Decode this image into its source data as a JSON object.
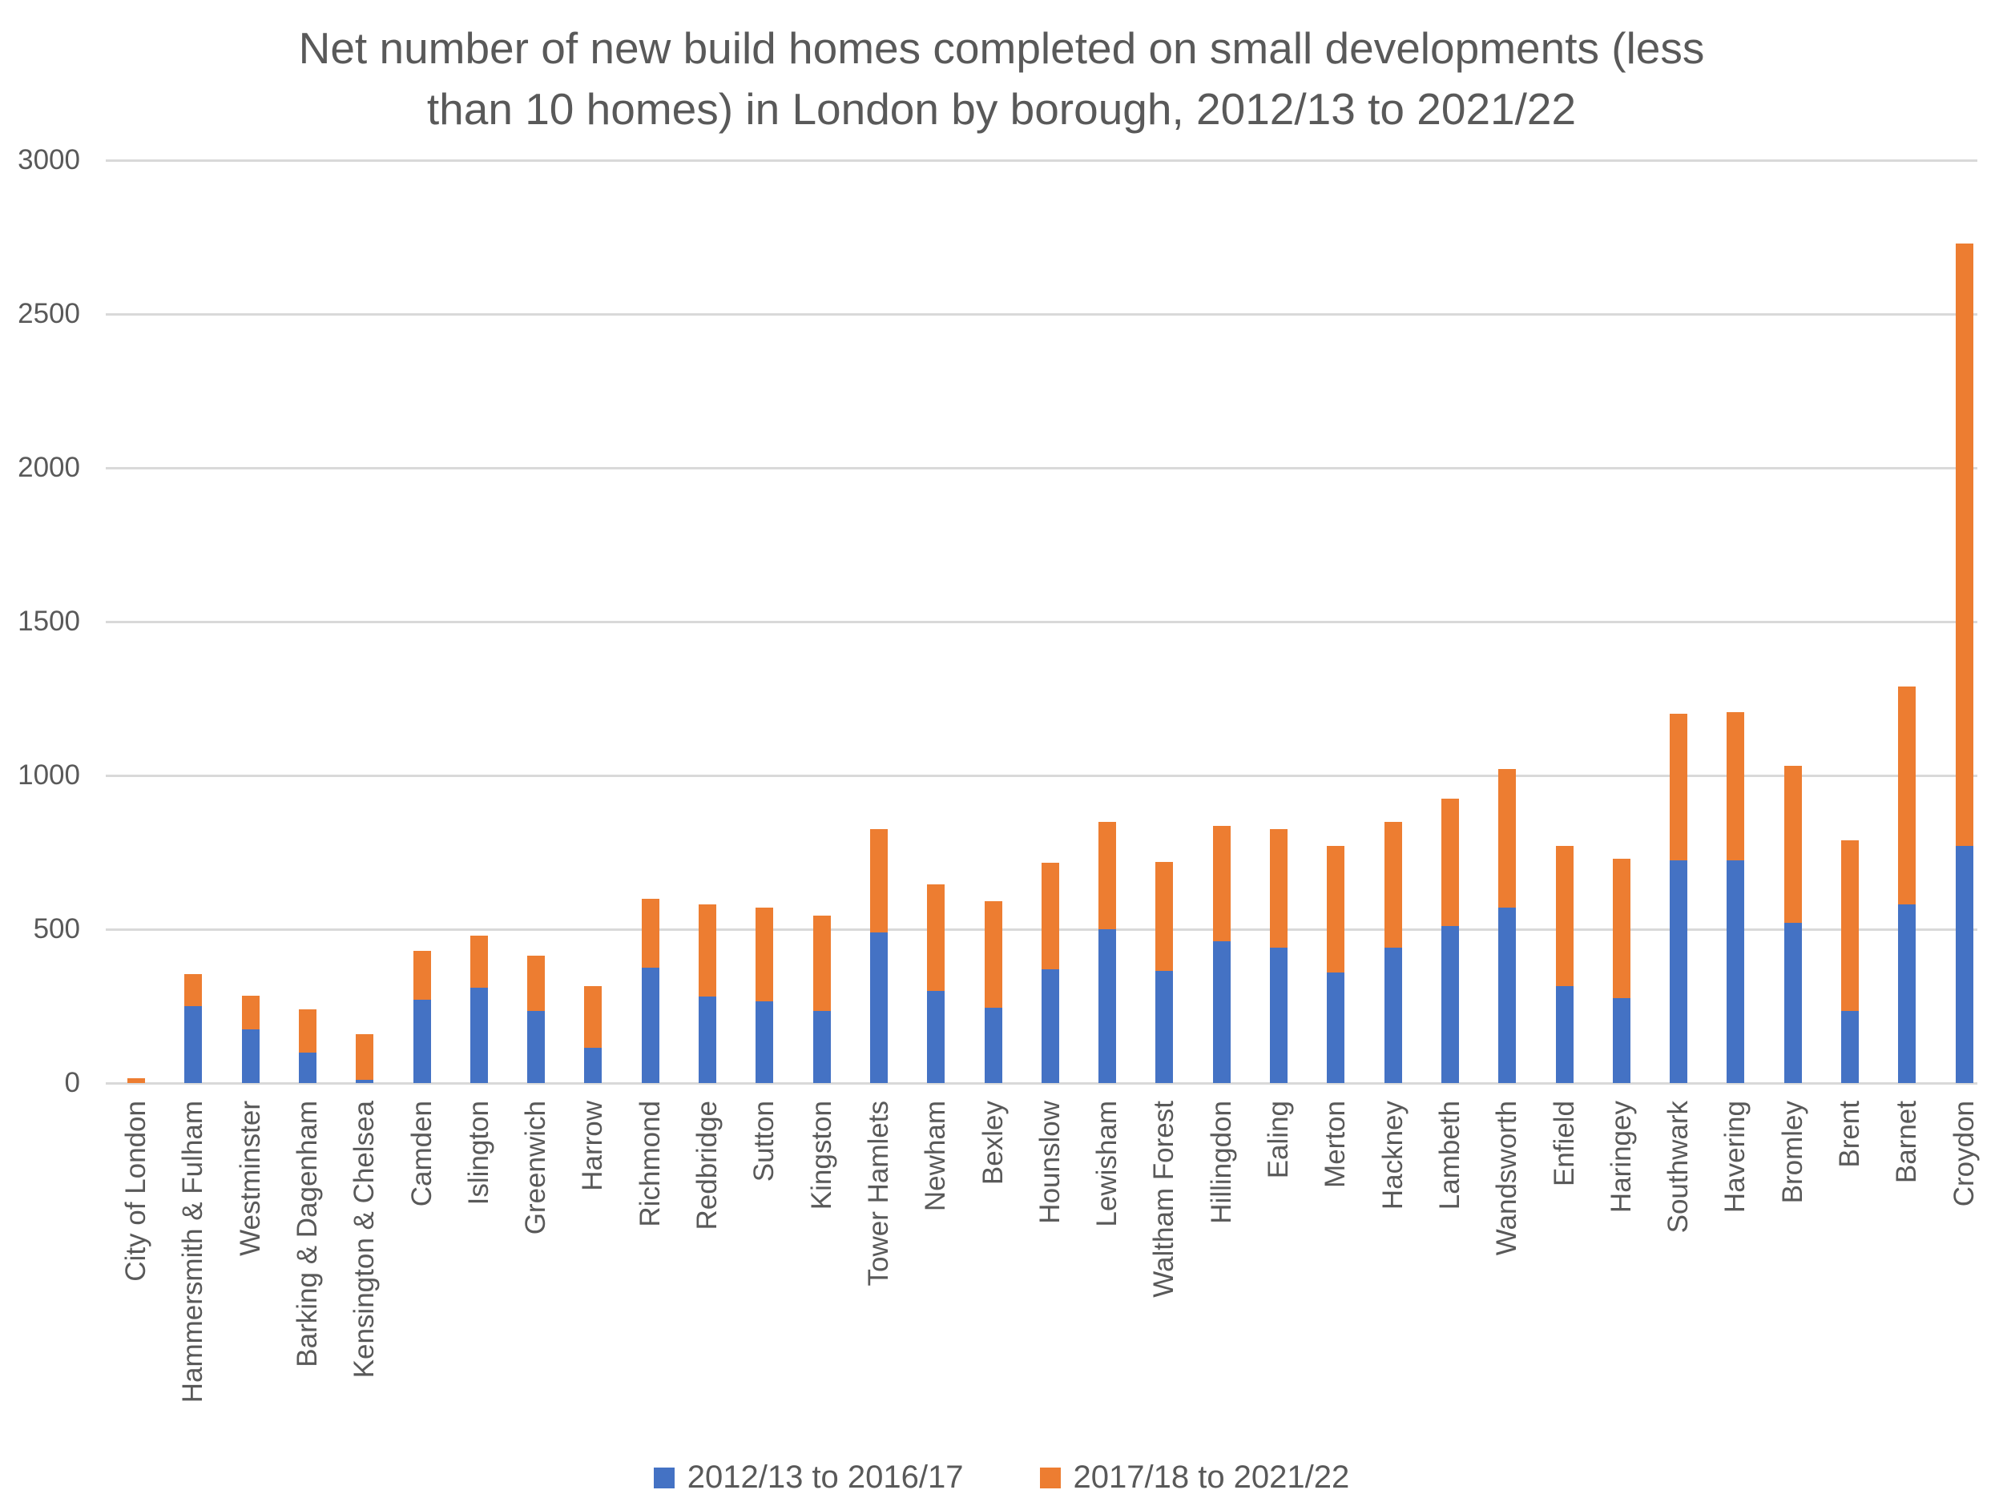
{
  "chart_data": {
    "type": "bar",
    "stacked": true,
    "title": "Net number of new build homes completed on small developments (less than 10 homes) in London by borough, 2012/13 to 2021/22",
    "title_lines": [
      "Net number of new build homes completed on small developments (less",
      "than 10 homes) in London by borough, 2012/13 to 2021/22"
    ],
    "categories": [
      "City of London",
      "Hammersmith & Fulham",
      "Westminster",
      "Barking & Dagenham",
      "Kensington & Chelsea",
      "Camden",
      "Islington",
      "Greenwich",
      "Harrow",
      "Richmond",
      "Redbridge",
      "Sutton",
      "Kingston",
      "Tower Hamlets",
      "Newham",
      "Bexley",
      "Hounslow",
      "Lewisham",
      "Waltham Forest",
      "Hillingdon",
      "Ealing",
      "Merton",
      "Hackney",
      "Lambeth",
      "Wandsworth",
      "Enfield",
      "Haringey",
      "Southwark",
      "Havering",
      "Bromley",
      "Brent",
      "Barnet",
      "Croydon"
    ],
    "series": [
      {
        "name": "2012/13 to 2016/17",
        "color": "#4472C4",
        "values": [
          0,
          250,
          175,
          100,
          10,
          270,
          310,
          235,
          115,
          375,
          280,
          265,
          235,
          490,
          300,
          245,
          370,
          500,
          365,
          460,
          440,
          360,
          440,
          510,
          570,
          315,
          275,
          725,
          725,
          520,
          235,
          580,
          770
        ]
      },
      {
        "name": "2017/18 to 2021/22",
        "color": "#ED7D31",
        "values": [
          15,
          105,
          110,
          140,
          150,
          160,
          170,
          180,
          200,
          225,
          300,
          305,
          310,
          335,
          345,
          345,
          345,
          350,
          355,
          375,
          385,
          410,
          410,
          415,
          450,
          455,
          455,
          475,
          480,
          510,
          555,
          710,
          1960
        ]
      }
    ],
    "xlabel": "",
    "ylabel": "",
    "ylim": [
      0,
      3000
    ],
    "yticks": [
      0,
      500,
      1000,
      1500,
      2000,
      2500,
      3000
    ],
    "grid": true,
    "legend_position": "bottom",
    "text_color": "#595959",
    "gridline_color": "#D9D9D9",
    "background_color": "#FFFFFF"
  }
}
